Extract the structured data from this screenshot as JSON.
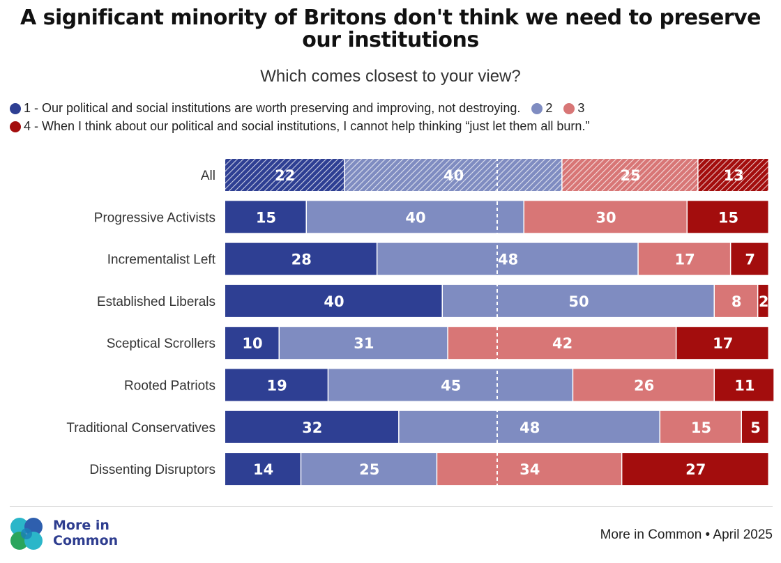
{
  "chart_data": {
    "type": "bar",
    "orientation": "horizontal",
    "stacked": true,
    "normalized_percent": true,
    "title": "A significant minority of Britons don't think we need to preserve our institutions",
    "subtitle": "Which comes closest to your view?",
    "categories": [
      "All",
      "Progressive Activists",
      "Incrementalist Left",
      "Established Liberals",
      "Sceptical Scrollers",
      "Rooted Patriots",
      "Traditional Conservatives",
      "Dissenting Disruptors"
    ],
    "series": [
      {
        "name": "1",
        "legend": "1 - Our political and social institutions are worth preserving and improving, not destroying.",
        "color": "#2e3f93",
        "values": [
          22,
          15,
          28,
          40,
          10,
          19,
          32,
          14
        ]
      },
      {
        "name": "2",
        "legend": "2",
        "color": "#7f8cc1",
        "values": [
          40,
          40,
          48,
          50,
          31,
          45,
          48,
          25
        ]
      },
      {
        "name": "3",
        "legend": "3",
        "color": "#d87676",
        "values": [
          25,
          30,
          17,
          8,
          42,
          26,
          15,
          34
        ]
      },
      {
        "name": "4",
        "legend": "4 - When I think about our political and social institutions, I cannot help thinking “just let them all burn.”",
        "color": "#a30d0d",
        "values": [
          13,
          15,
          7,
          2,
          17,
          11,
          5,
          27
        ]
      }
    ],
    "hatched_categories": [
      "All"
    ],
    "reference_line": 50,
    "xlim": [
      0,
      100
    ]
  },
  "legend": {
    "item1": "1 - Our political and social institutions are worth preserving and improving, not destroying.",
    "item2": "2",
    "item3": "3",
    "item4": "4 - When I think about our political and social institutions, I cannot help thinking “just let them all burn.”"
  },
  "branding": {
    "logo_line1": "More in",
    "logo_line2": "Common",
    "source": "More in Common • April 2025"
  }
}
